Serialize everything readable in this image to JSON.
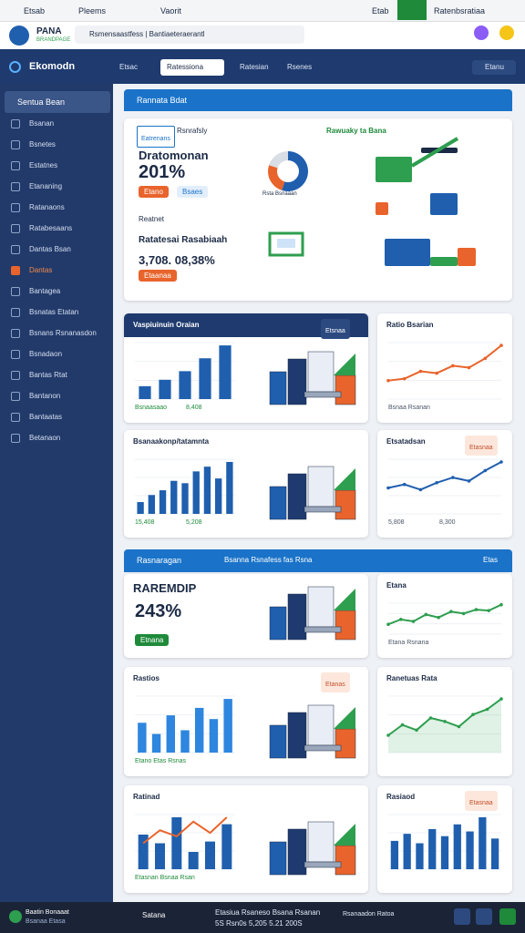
{
  "browser": {
    "tabs": [
      "Etsab",
      "Pleems",
      "Vaorit"
    ],
    "active_tab": "Etab",
    "profile": "Ratenbsratiaa"
  },
  "address": {
    "brand": "PANA",
    "brand_sub": "BRANDPAGE",
    "url": "Rsmensaastfess  |  Bantiaeteraerantl"
  },
  "app": {
    "brand": "Ekomodn",
    "nav": [
      "Etsac",
      "Ratessiona",
      "Ratesian",
      "Rsenes"
    ],
    "menu": "Etanu"
  },
  "sidebar": {
    "header": "Sentua Bean",
    "items": [
      "Bsanan",
      "Bsnetes",
      "Estatnes",
      "Etananing",
      "Ratanaons",
      "Ratabesaans",
      "Dantas Bsan",
      "Dantas",
      "Bantagea",
      "Bsnatas Etatan",
      "Bsnans Rsnanasdon",
      "Bsnadaon",
      "Bantas Rtat",
      "Bantanon",
      "Bantaatas",
      "Betanaon"
    ],
    "active": 7
  },
  "sections": [
    {
      "title": "Rannata Bdat"
    },
    {
      "title": "Rasnaragan",
      "subtitle": "Bsanna Rsnafess fas Rsna",
      "action": "Etas"
    }
  ],
  "hero": {
    "chip": "Eatrenans",
    "tab": "Rsnrafsly",
    "link": "Rawuaky ta Bana",
    "heading": "Dratomonan",
    "big": "201%",
    "buttons": [
      "Etano",
      "Bsaes"
    ],
    "label2": "Reatnet",
    "heading2": "Ratatesai Rasabiaah",
    "big2": "3,708. 08,38%",
    "button2": "Etaanaa",
    "caption": "Rsta Bsnaaan",
    "donut": {
      "values": [
        55,
        25,
        20
      ],
      "colors": [
        "#1f5fae",
        "#e8642c",
        "#d9dde5"
      ]
    }
  },
  "cards": [
    {
      "title": "Vaspiuinuin Oraian",
      "badge": "Etsnaa",
      "chart": {
        "type": "bar",
        "color": "#1f5fae",
        "values": [
          12,
          18,
          26,
          38,
          50
        ]
      },
      "notes": [
        "Bsnaasaao",
        "8,408"
      ]
    },
    {
      "title": "Ratio Bsarian",
      "chart": {
        "type": "line",
        "color": "#e8642c",
        "values": [
          20,
          22,
          30,
          28,
          36,
          34,
          44,
          58
        ]
      },
      "notes": [
        "Bsnaa Rsanan"
      ]
    },
    {
      "title": "Bsanaakonp/tatamnta",
      "chart": {
        "type": "bar",
        "color": "#1f5fae",
        "values": [
          10,
          16,
          20,
          28,
          26,
          36,
          40,
          30,
          44
        ]
      },
      "notes": [
        "15,408",
        "5,208"
      ]
    },
    {
      "title": "Etsatadsan",
      "badge": "Etasnaa",
      "chart": {
        "type": "line",
        "color": "#1f5fae",
        "values": [
          30,
          34,
          28,
          36,
          42,
          38,
          50,
          60
        ]
      },
      "notes": [
        "5,808",
        "8,300"
      ]
    },
    {
      "title": "RAREMDIP",
      "big": "243%",
      "buttons": [
        "Etnana"
      ]
    },
    {
      "title": "Etana",
      "chart": {
        "type": "line",
        "color": "#2e9e4f",
        "values": [
          20,
          30,
          26,
          40,
          34,
          46,
          42,
          50,
          48,
          60
        ]
      },
      "notes": [
        "Etana Rsnana"
      ]
    },
    {
      "title": "Rastios",
      "badge": "Etanas",
      "chart": {
        "type": "bar",
        "color": "#2e86de",
        "values": [
          40,
          25,
          50,
          30,
          60,
          45,
          72
        ]
      },
      "notes": [
        "Etano Etas Rsnas"
      ]
    },
    {
      "title": "Ranetuas Rata",
      "chart": {
        "type": "area",
        "color": "#2e9e4f",
        "values": [
          20,
          32,
          26,
          40,
          36,
          30,
          44,
          50,
          62
        ]
      }
    },
    {
      "title": "Ratinad",
      "chart": {
        "type": "bar",
        "color": "#1f5fae",
        "values": [
          40,
          30,
          60,
          20,
          32,
          52
        ],
        "line": [
          30,
          45,
          38,
          55,
          42,
          60
        ],
        "line_color": "#e8642c"
      },
      "notes": [
        "Etasnan Bsnaa Rsan"
      ]
    },
    {
      "title": "Rasiaod",
      "badge": "Etasnaa",
      "chart": {
        "type": "bar",
        "color": "#1f5fae",
        "values": [
          24,
          30,
          22,
          34,
          28,
          38,
          32,
          44,
          26
        ]
      }
    }
  ],
  "footer": {
    "brand": "Baatin Bonaaat",
    "brand_sub": "Bsanaa Etasa",
    "center": "Satana",
    "line1": "Etasiua Rsaneso Bsana Rsanan",
    "line2": "5S Rsn0s 5,205 5.21 200S",
    "right": "Rsanaadon Ratoa"
  }
}
